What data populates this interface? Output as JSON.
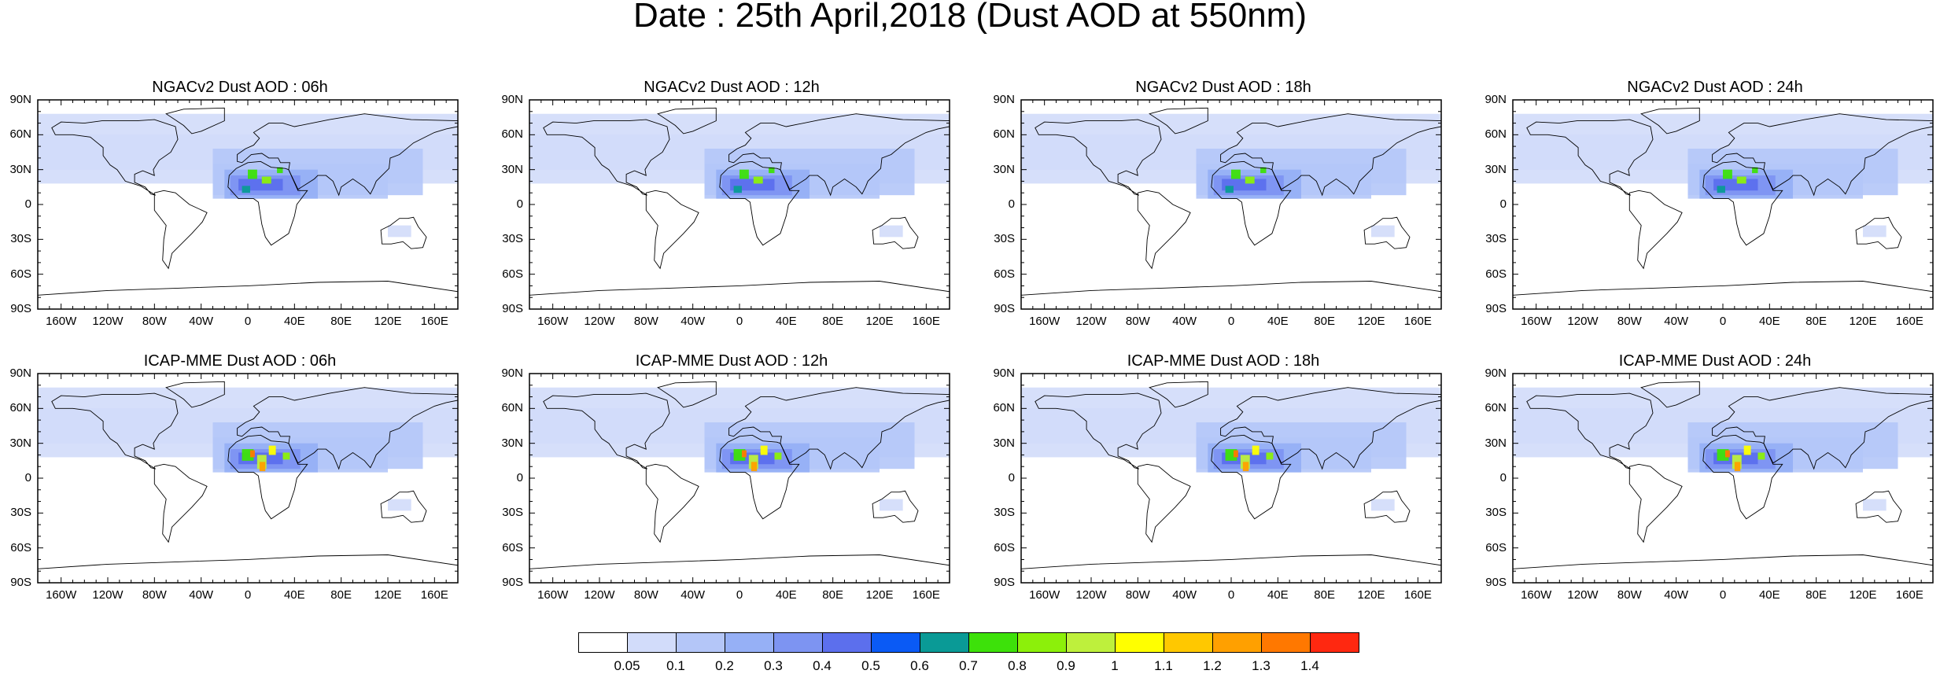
{
  "main_title": "Date : 25th April,2018 (Dust AOD at 550nm)",
  "lat_ticks": [
    "90N",
    "60N",
    "30N",
    "0",
    "30S",
    "60S",
    "90S"
  ],
  "lon_ticks": [
    "160W",
    "120W",
    "80W",
    "40W",
    "0",
    "40E",
    "80E",
    "120E",
    "160E"
  ],
  "panels": [
    {
      "title": "NGACv2 Dust AOD : 06h"
    },
    {
      "title": "NGACv2 Dust AOD : 12h"
    },
    {
      "title": "NGACv2 Dust AOD : 18h"
    },
    {
      "title": "NGACv2 Dust AOD : 24h"
    },
    {
      "title": "ICAP-MME Dust AOD : 06h"
    },
    {
      "title": "ICAP-MME Dust AOD : 12h"
    },
    {
      "title": "ICAP-MME Dust AOD : 18h"
    },
    {
      "title": "ICAP-MME Dust AOD : 24h"
    }
  ],
  "colorbar": {
    "labels": [
      "0.05",
      "0.1",
      "0.2",
      "0.3",
      "0.4",
      "0.5",
      "0.6",
      "0.7",
      "0.8",
      "0.9",
      "1",
      "1.1",
      "1.2",
      "1.3",
      "1.4"
    ],
    "colors": [
      "#ffffff",
      "#d2dcfa",
      "#b4c6f8",
      "#96b0f6",
      "#7d94f2",
      "#5c6fed",
      "#0a5af5",
      "#0a9a96",
      "#3de10a",
      "#8cf00a",
      "#bef03c",
      "#ffff00",
      "#ffc800",
      "#ffa000",
      "#ff7800",
      "#ff2810"
    ]
  }
}
